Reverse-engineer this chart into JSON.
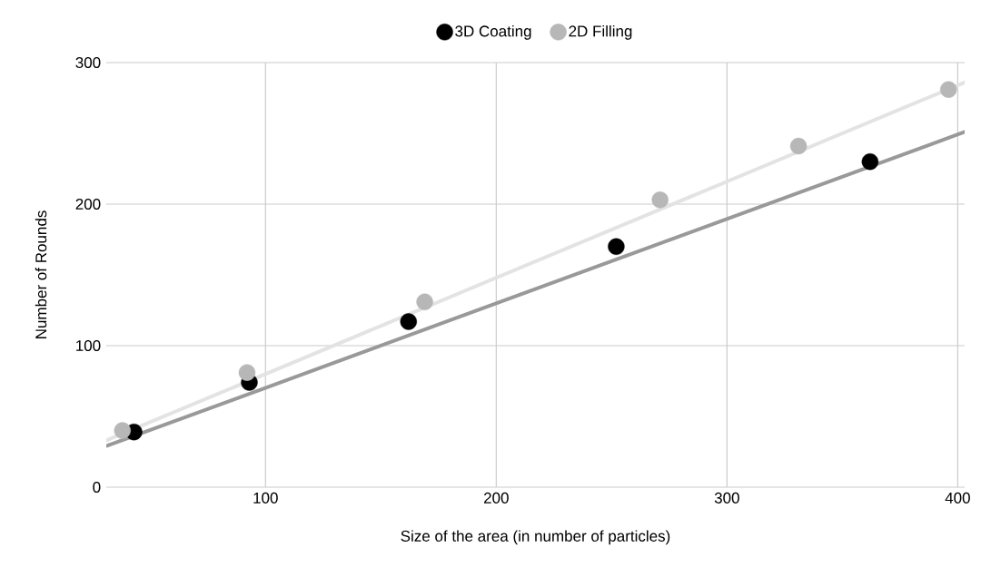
{
  "chart_data": {
    "type": "scatter",
    "xlabel": "Size of the area (in number of particles)",
    "ylabel": "Number of Rounds",
    "xlim": [
      31,
      403
    ],
    "ylim": [
      0,
      300
    ],
    "xticks": [
      100,
      200,
      300,
      400
    ],
    "yticks": [
      0,
      100,
      200,
      300
    ],
    "grid": true,
    "legend": "top",
    "series": [
      {
        "type": "line",
        "color": "#999999",
        "x": [
          31,
          403
        ],
        "values": [
          29,
          251
        ],
        "marker": "none",
        "line_style": "solid"
      },
      {
        "type": "line",
        "color": "#e3e3e3",
        "x": [
          31,
          403
        ],
        "values": [
          33,
          286
        ],
        "marker": "none",
        "line_style": "solid"
      },
      {
        "name": "3D Coating",
        "marker": "circle",
        "color": "#000000",
        "x": [
          43,
          93,
          162,
          252,
          362
        ],
        "values": [
          39,
          74,
          117,
          170,
          230
        ]
      },
      {
        "name": "2D Filling",
        "marker": "circle",
        "color": "#b7b7b7",
        "x": [
          38,
          92,
          169,
          271,
          331,
          396
        ],
        "values": [
          40,
          81,
          131,
          203,
          241,
          281
        ]
      }
    ]
  }
}
